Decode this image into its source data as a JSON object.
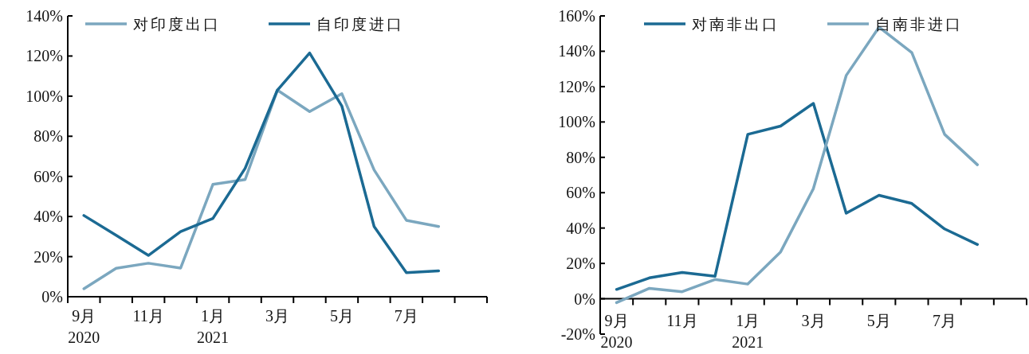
{
  "chart_data": [
    {
      "type": "line",
      "categories": [
        "9月\n2020",
        null,
        "11月",
        null,
        "1月\n2021",
        null,
        "3月",
        null,
        "5月",
        null,
        "7月",
        null,
        null
      ],
      "series": [
        {
          "name": "对印度出口",
          "color": "#7ba7bf",
          "values": [
            4,
            14.2,
            16.7,
            14.3,
            56,
            58.4,
            103,
            92.3,
            101.2,
            63.2,
            38.1,
            35,
            null
          ]
        },
        {
          "name": "自印度进口",
          "color": "#1b6a93",
          "values": [
            40.5,
            30.6,
            20.6,
            32.5,
            39,
            64,
            103,
            121.5,
            95,
            35,
            12,
            12.9,
            null
          ]
        }
      ],
      "ylim": [
        0,
        140
      ],
      "yticks": [
        {
          "value": 0,
          "label": "0%"
        },
        {
          "value": 20,
          "label": "20%"
        },
        {
          "value": 40,
          "label": "40%"
        },
        {
          "value": 60,
          "label": "60%"
        },
        {
          "value": 80,
          "label": "80%"
        },
        {
          "value": 100,
          "label": "100%"
        },
        {
          "value": 120,
          "label": "120%"
        },
        {
          "value": 140,
          "label": "140%"
        }
      ],
      "legend": "top"
    },
    {
      "type": "line",
      "categories": [
        "9月\n2020",
        null,
        "11月",
        null,
        "1月\n2021",
        null,
        "3月",
        null,
        "5月",
        null,
        "7月",
        null,
        null
      ],
      "series": [
        {
          "name": "对南非出口",
          "color": "#1b6a93",
          "values": [
            5.3,
            11.8,
            14.9,
            12.7,
            93,
            97.7,
            110.5,
            48.4,
            58.5,
            53.9,
            39.5,
            30.7,
            null
          ]
        },
        {
          "name": "自南非进口",
          "color": "#7ba7bf",
          "values": [
            -2.2,
            5.9,
            4,
            10.9,
            8.3,
            26.5,
            62.3,
            126.3,
            153.6,
            139.2,
            93,
            75.8,
            null
          ]
        }
      ],
      "ylim": [
        -20,
        160
      ],
      "yticks": [
        {
          "value": -20,
          "label": "-20%"
        },
        {
          "value": 0,
          "label": "0%"
        },
        {
          "value": 20,
          "label": "20%"
        },
        {
          "value": 40,
          "label": "40%"
        },
        {
          "value": 60,
          "label": "60%"
        },
        {
          "value": 80,
          "label": "80%"
        },
        {
          "value": 100,
          "label": "100%"
        },
        {
          "value": 120,
          "label": "120%"
        },
        {
          "value": 140,
          "label": "140%"
        },
        {
          "value": 160,
          "label": "160%"
        }
      ],
      "legend": "top"
    }
  ]
}
